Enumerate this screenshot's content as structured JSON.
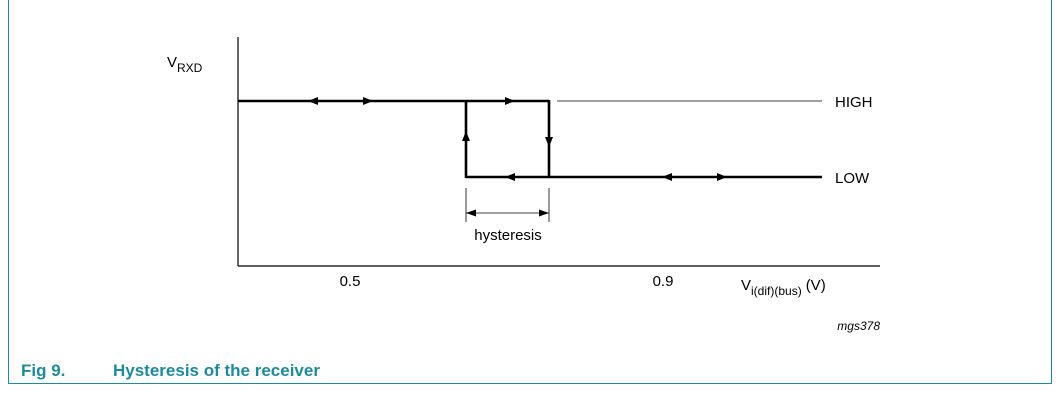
{
  "diagram": {
    "y_axis_label": {
      "main": "V",
      "sub": "RXD"
    },
    "x_axis_label": {
      "main": "V",
      "sub": "i(dif)(bus)",
      "unit": "(V)"
    },
    "x_ticks": [
      "0.5",
      "0.9"
    ],
    "levels": {
      "high": "HIGH",
      "low": "LOW"
    },
    "hysteresis_label": "hysteresis",
    "figure_code": "mgs378"
  },
  "caption": {
    "number": "Fig 9.",
    "title": "Hysteresis of the receiver"
  },
  "colors": {
    "accent": "#1f8a9a",
    "line": "#000000"
  }
}
